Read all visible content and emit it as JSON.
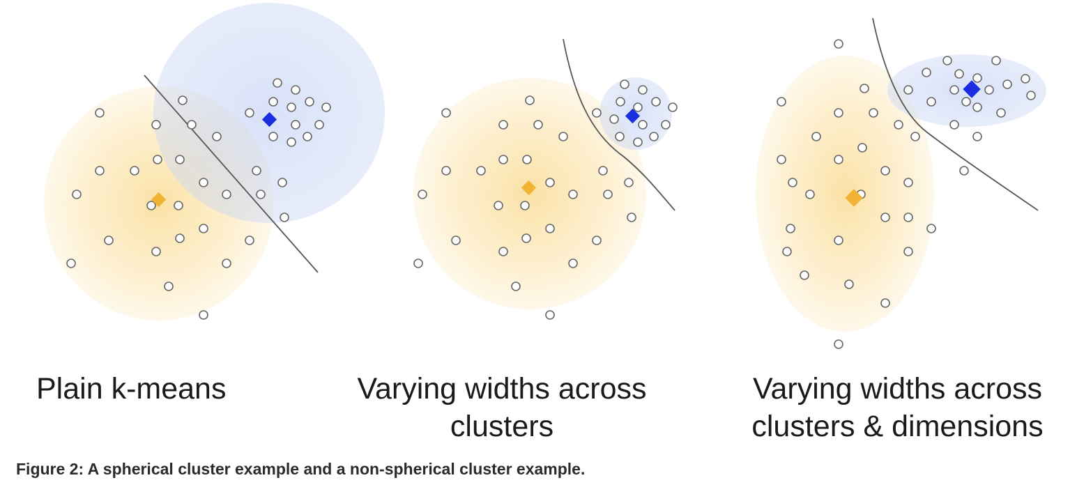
{
  "panels": [
    {
      "label_lines": [
        "Plain k-means"
      ]
    },
    {
      "label_lines": [
        "Varying widths across",
        "clusters"
      ]
    },
    {
      "label_lines": [
        "Varying widths across",
        "clusters & dimensions"
      ]
    }
  ],
  "caption": "Figure 2: A spherical cluster example and a non-spherical cluster example.",
  "colors": {
    "cluster_a_fill": "#fbd98a",
    "cluster_b_fill": "#c9d6f5",
    "centroid_a": "#f2b233",
    "centroid_b": "#1a2ee0",
    "boundary": "#555555",
    "point_stroke": "#666666"
  }
}
